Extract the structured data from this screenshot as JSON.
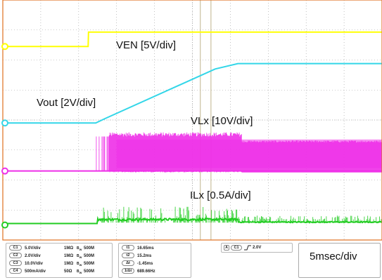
{
  "chart_data": {
    "type": "line",
    "title": "",
    "xlabel": "",
    "ylabel": "",
    "grid": true,
    "divisions": {
      "x": 10,
      "y": 8
    },
    "time_per_div_ms": 5,
    "series": [
      {
        "name": "VEN [5V/div]",
        "color": "#ffff00",
        "label_pos": "top-center"
      },
      {
        "name": "Vout [2V/div]",
        "color": "#33d6e8",
        "label_pos": "left"
      },
      {
        "name": "VLx [10V/div]",
        "color": "#ee2fe8",
        "label_pos": "center"
      },
      {
        "name": "ILx [0.5A/div]",
        "color": "#22cc22",
        "label_pos": "center"
      }
    ],
    "timebase_label": "5msec/div",
    "trigger": {
      "channel": "C1",
      "level": "2.0V"
    }
  },
  "channels": [
    {
      "id": "C1",
      "scale": "5.0V/div",
      "coupling": "1MΩ",
      "bw": "500M"
    },
    {
      "id": "C2",
      "scale": "2.0V/div",
      "coupling": "1MΩ",
      "bw": "500M"
    },
    {
      "id": "C3",
      "scale": "10.0V/div",
      "coupling": "1MΩ",
      "bw": "500M"
    },
    {
      "id": "C4",
      "scale": "500mA/div",
      "coupling": "50Ω",
      "bw": "500M"
    }
  ],
  "cursors": [
    {
      "id": "t1",
      "value": "16.65ms"
    },
    {
      "id": "t2",
      "value": "15.2ms"
    },
    {
      "id": "Δt",
      "value": "-1.45ms"
    },
    {
      "id": "1/Δt",
      "value": "689.66Hz"
    }
  ],
  "colors": {
    "background": "#ffffff",
    "grid": "#9a9a9a",
    "frame": "#e07020"
  }
}
